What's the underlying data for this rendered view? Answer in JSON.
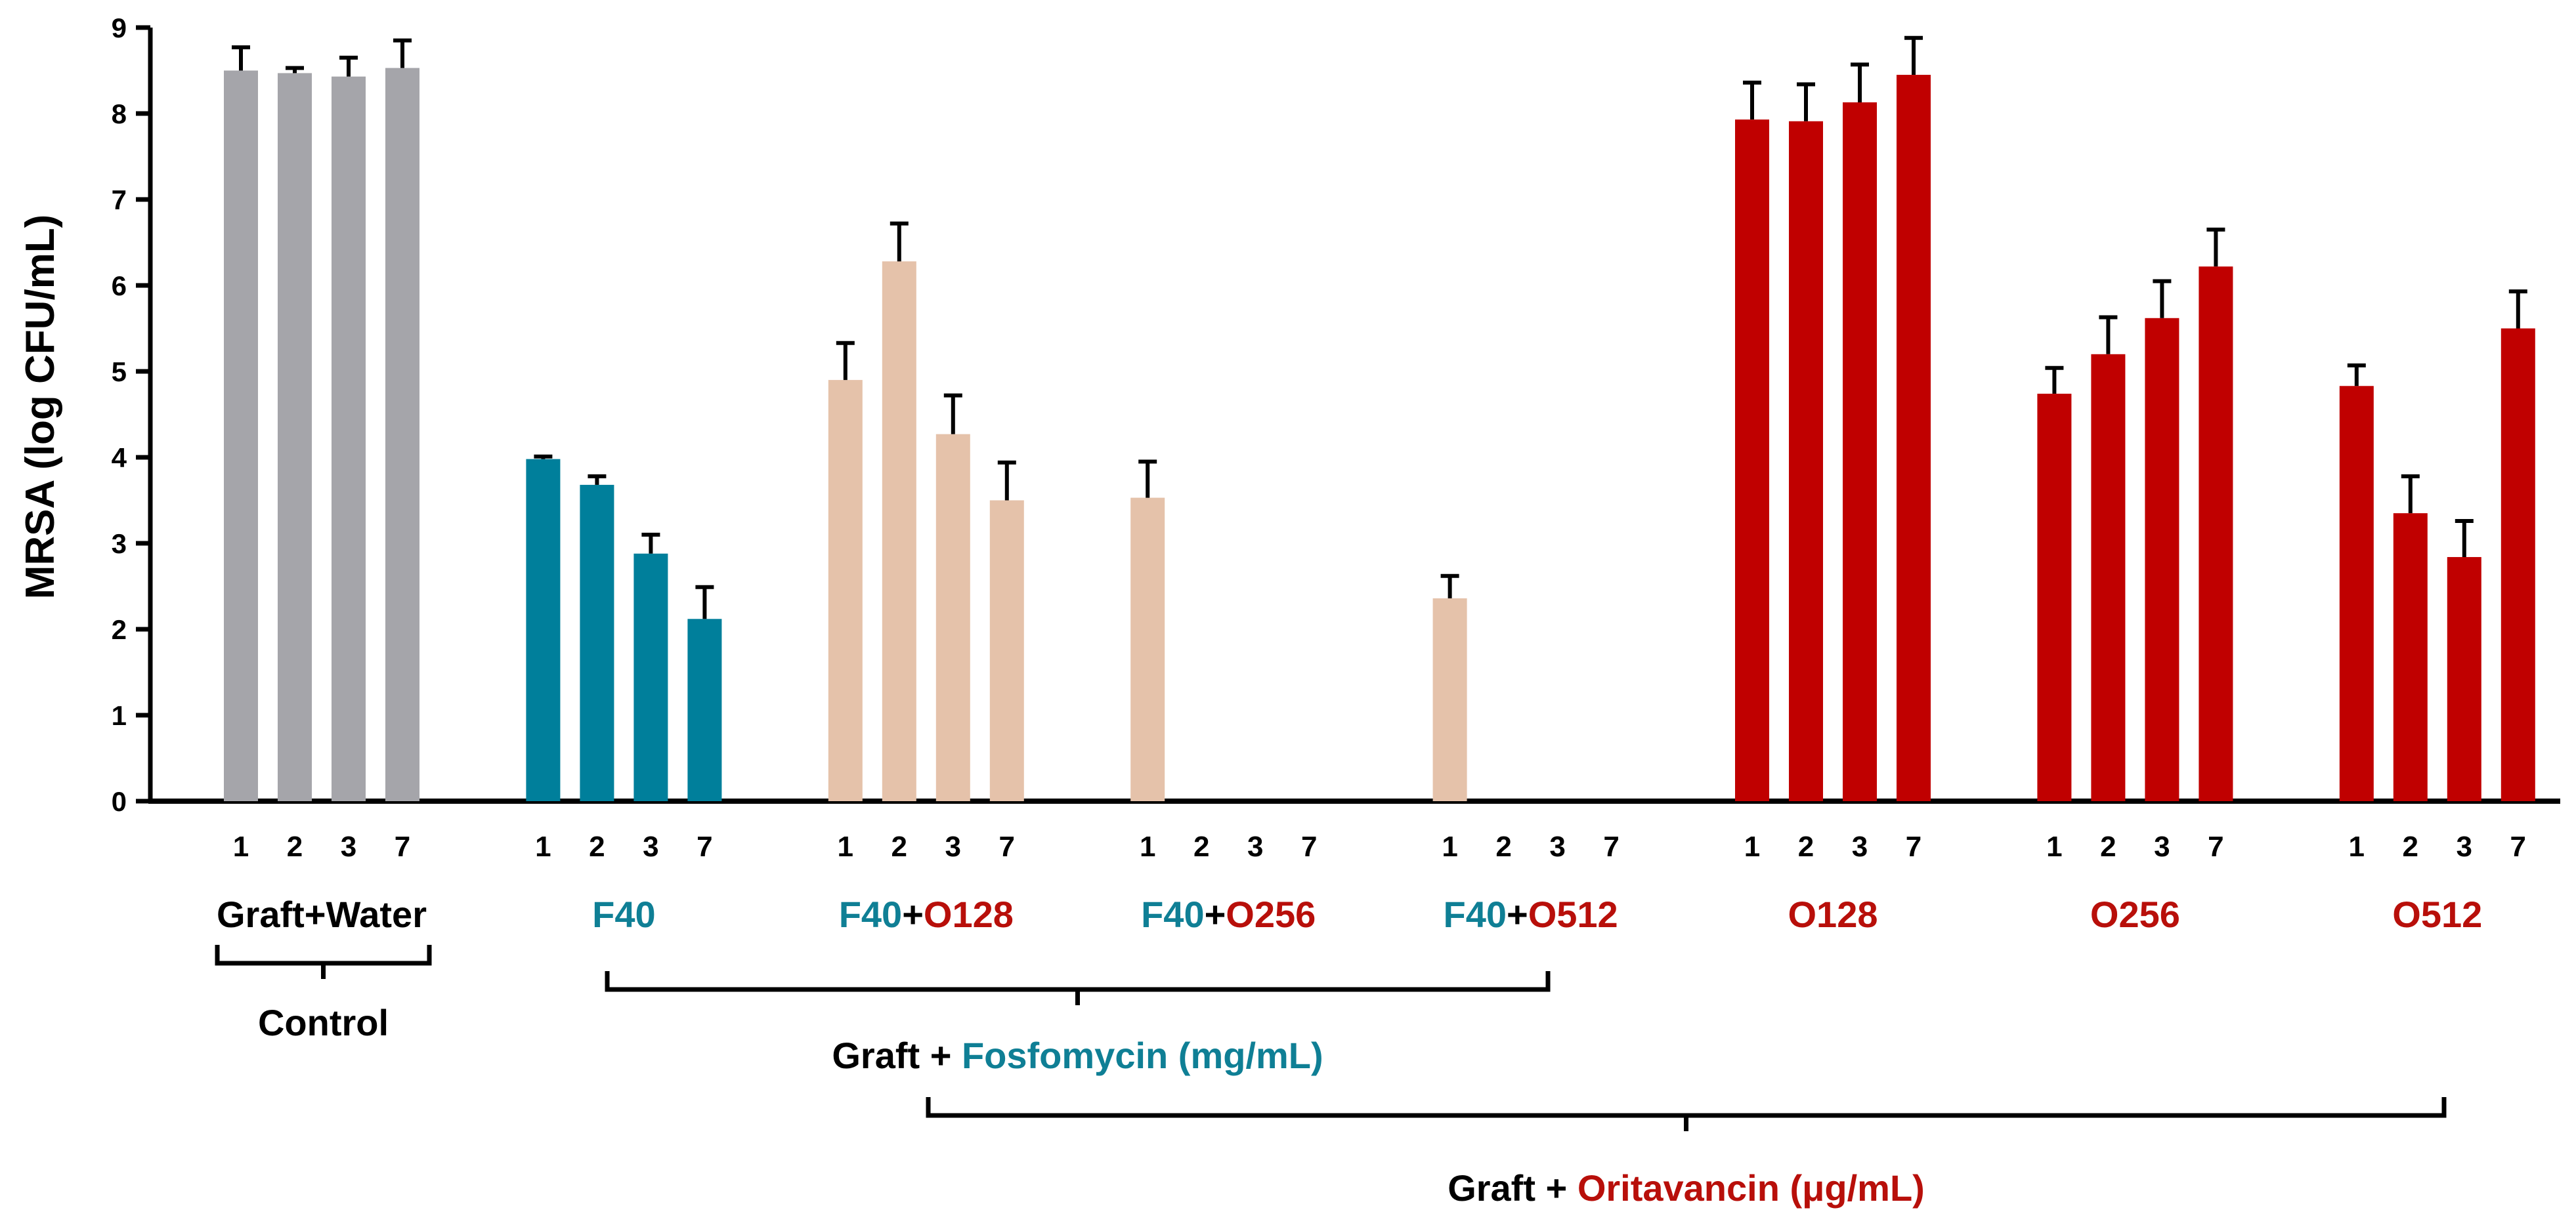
{
  "chart_data": {
    "type": "bar",
    "ylabel": "MRSA (log CFU/mL)",
    "ylim": [
      0,
      9
    ],
    "yticks": [
      0,
      1,
      2,
      3,
      4,
      5,
      6,
      7,
      8,
      9
    ],
    "grid": false,
    "x_time_labels": [
      "1",
      "2",
      "3",
      "7"
    ],
    "colors": {
      "control": "#a5a5aa",
      "fosfomycin": "#007f9b",
      "combo": "#e5c2aa",
      "oritavancin": "#c00000",
      "text_teal": "#0f7f95",
      "text_red": "#b80f0a",
      "text_black": "#000000"
    },
    "groups": [
      {
        "label_parts": [
          {
            "text": "Graft+Water",
            "color": "black"
          }
        ],
        "color_key": "control",
        "values": [
          8.5,
          8.47,
          8.43,
          8.53
        ],
        "errors": [
          0.27,
          0.06,
          0.22,
          0.32
        ]
      },
      {
        "label_parts": [
          {
            "text": "F40",
            "color": "teal"
          }
        ],
        "color_key": "fosfomycin",
        "values": [
          3.98,
          3.68,
          2.88,
          2.12
        ],
        "errors": [
          0.03,
          0.1,
          0.22,
          0.37
        ]
      },
      {
        "label_parts": [
          {
            "text": "F40",
            "color": "teal"
          },
          {
            "text": "+",
            "color": "black"
          },
          {
            "text": "O128",
            "color": "red"
          }
        ],
        "color_key": "combo",
        "values": [
          4.9,
          6.28,
          4.27,
          3.5
        ],
        "errors": [
          0.43,
          0.44,
          0.45,
          0.44
        ]
      },
      {
        "label_parts": [
          {
            "text": "F40",
            "color": "teal"
          },
          {
            "text": "+",
            "color": "black"
          },
          {
            "text": "O256",
            "color": "red"
          }
        ],
        "color_key": "combo",
        "values": [
          3.53,
          0,
          0,
          0
        ],
        "errors": [
          0.42,
          0,
          0,
          0
        ]
      },
      {
        "label_parts": [
          {
            "text": "F40",
            "color": "teal"
          },
          {
            "text": "+",
            "color": "black"
          },
          {
            "text": "O512",
            "color": "red"
          }
        ],
        "color_key": "combo",
        "values": [
          2.36,
          0,
          0,
          0
        ],
        "errors": [
          0.26,
          0,
          0,
          0
        ]
      },
      {
        "label_parts": [
          {
            "text": "O128",
            "color": "red"
          }
        ],
        "color_key": "oritavancin",
        "values": [
          7.93,
          7.91,
          8.13,
          8.45
        ],
        "errors": [
          0.43,
          0.43,
          0.44,
          0.43
        ]
      },
      {
        "label_parts": [
          {
            "text": "O256",
            "color": "red"
          }
        ],
        "color_key": "oritavancin",
        "values": [
          4.74,
          5.2,
          5.62,
          6.22
        ],
        "errors": [
          0.3,
          0.43,
          0.43,
          0.43
        ]
      },
      {
        "label_parts": [
          {
            "text": "O512",
            "color": "red"
          }
        ],
        "color_key": "oritavancin",
        "values": [
          4.83,
          3.35,
          2.84,
          5.5
        ],
        "errors": [
          0.24,
          0.43,
          0.42,
          0.43
        ]
      }
    ],
    "brackets": [
      {
        "name": "control",
        "from_group": 0,
        "to_group": 0,
        "label_parts": [
          {
            "text": "Control",
            "color": "black"
          }
        ]
      },
      {
        "name": "fosfomycin",
        "from_group": 1,
        "to_group": 4,
        "label_parts": [
          {
            "text": "Graft + ",
            "color": "black"
          },
          {
            "text": "Fosfomycin (mg/mL)",
            "color": "teal"
          }
        ]
      },
      {
        "name": "oritavancin",
        "from_group": 2,
        "to_group": 7,
        "label_parts": [
          {
            "text": "Graft + ",
            "color": "black"
          },
          {
            "text": "Oritavancin (μg/mL)",
            "color": "red"
          }
        ]
      }
    ]
  }
}
